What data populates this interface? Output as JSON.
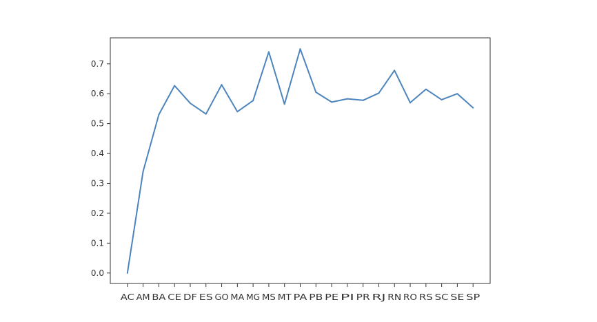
{
  "chart_data": {
    "type": "line",
    "categories": [
      "AC",
      "AM",
      "BA",
      "CE",
      "DF",
      "ES",
      "GO",
      "MA",
      "MG",
      "MS",
      "MT",
      "PA",
      "PB",
      "PE",
      "PI",
      "PR",
      "RJ",
      "RN",
      "RO",
      "RS",
      "SC",
      "SE",
      "SP"
    ],
    "series": [
      {
        "values": [
          0.0,
          0.34,
          0.53,
          0.627,
          0.568,
          0.532,
          0.63,
          0.54,
          0.577,
          0.74,
          0.565,
          0.75,
          0.605,
          0.572,
          0.583,
          0.578,
          0.602,
          0.678,
          0.57,
          0.615,
          0.58,
          0.6,
          0.553
        ]
      }
    ],
    "ylim": [
      -0.035,
      0.787
    ],
    "yticks": [
      0.0,
      0.1,
      0.2,
      0.3,
      0.4,
      0.5,
      0.6,
      0.7
    ],
    "ytick_labels": [
      "0.0",
      "0.1",
      "0.2",
      "0.3",
      "0.4",
      "0.5",
      "0.6",
      "0.7"
    ],
    "grid": false,
    "title": "",
    "xlabel": "",
    "ylabel": "",
    "line_color": "#4c84bd"
  }
}
